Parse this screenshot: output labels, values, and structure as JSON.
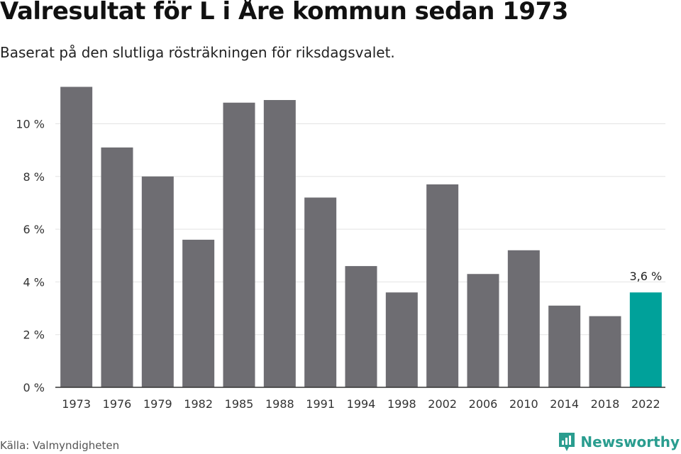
{
  "header": {
    "title": "Valresultat för L i Åre kommun sedan 1973",
    "subtitle": "Baserat på den slutliga rösträkningen för riksdagsvalet."
  },
  "footer": {
    "source": "Källa: Valmyndigheten",
    "brand": "Newsworthy",
    "brand_icon": "newsworthy-logo-icon"
  },
  "colors": {
    "bar": "#6e6d72",
    "highlight": "#00a19a",
    "grid": "#e3e3e3",
    "axis": "#333333",
    "brand": "#2a9d8f"
  },
  "chart_data": {
    "type": "bar",
    "categories": [
      "1973",
      "1976",
      "1979",
      "1982",
      "1985",
      "1988",
      "1991",
      "1994",
      "1998",
      "2002",
      "2006",
      "2010",
      "2014",
      "2018",
      "2022"
    ],
    "values": [
      11.4,
      9.1,
      8.0,
      5.6,
      10.8,
      10.9,
      7.2,
      4.6,
      3.6,
      7.7,
      4.3,
      5.2,
      3.1,
      2.7,
      3.6
    ],
    "highlight_category": "2022",
    "data_labels": [
      {
        "category": "2022",
        "text": "3,6 %"
      }
    ],
    "yticks": [
      0,
      2,
      4,
      6,
      8,
      10
    ],
    "ytick_labels": [
      "0 %",
      "2 %",
      "4 %",
      "6 %",
      "8 %",
      "10 %"
    ],
    "ylim": [
      0,
      11.6
    ],
    "grid": true,
    "legend": "none"
  }
}
